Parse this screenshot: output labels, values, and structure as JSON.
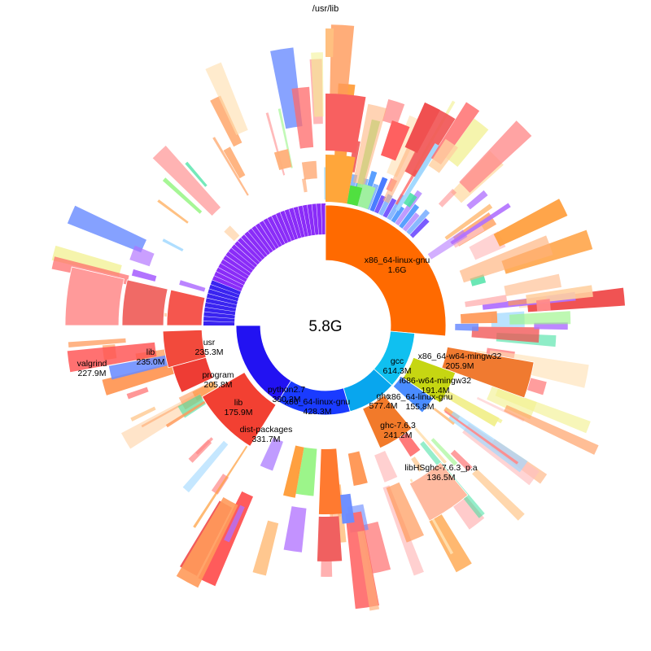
{
  "root_path": "/usr/lib",
  "total_size": "5.8G",
  "segments": [
    {
      "name": "x86_64-linux-gnu",
      "size": "1.6G",
      "depth": 1,
      "color": "#ff6a00"
    },
    {
      "name": "gcc",
      "size": "614.3M",
      "depth": 1,
      "color": "#10c0f0"
    },
    {
      "name": "ghc",
      "size": "577.4M",
      "depth": 1,
      "color": "#08a6ee"
    },
    {
      "name": "x86_64-linux-gnu",
      "size": "428.3M",
      "depth": 1,
      "color": "#1a3bff"
    },
    {
      "name": "python2.7",
      "size": "380.2M",
      "depth": 1,
      "color": "#2212f2"
    },
    {
      "name": "usr",
      "size": "235.3M",
      "depth": 2,
      "color": "#f5564e"
    },
    {
      "name": "lib",
      "size": "235.0M",
      "depth": 3,
      "color": "#f06a66"
    },
    {
      "name": "valgrind",
      "size": "227.9M",
      "depth": 4,
      "color": "#ff9a9a"
    },
    {
      "name": "program",
      "size": "205.8M",
      "depth": 2,
      "color": "#f24a3c"
    },
    {
      "name": "lib",
      "size": "175.9M",
      "depth": 2,
      "color": "#ee3c34"
    },
    {
      "name": "dist-packages",
      "size": "331.7M",
      "depth": 2,
      "color": "#f24032"
    },
    {
      "name": "x86_64-w64-mingw32",
      "size": "205.9M",
      "depth": 2,
      "color": "#f07a30"
    },
    {
      "name": "i686-w64-mingw32",
      "size": "191.4M",
      "depth": 2,
      "color": "#c6d612"
    },
    {
      "name": "x86_64-linux-gnu",
      "size": "155.8M",
      "depth": 2,
      "color": "#4a8cff"
    },
    {
      "name": "ghc-7.6.3",
      "size": "241.2M",
      "depth": 2,
      "color": "#f27a2a"
    },
    {
      "name": "libHSghc-7.6.3_p.a",
      "size": "136.5M",
      "depth": 4,
      "color": "#ffbaa0"
    }
  ]
}
